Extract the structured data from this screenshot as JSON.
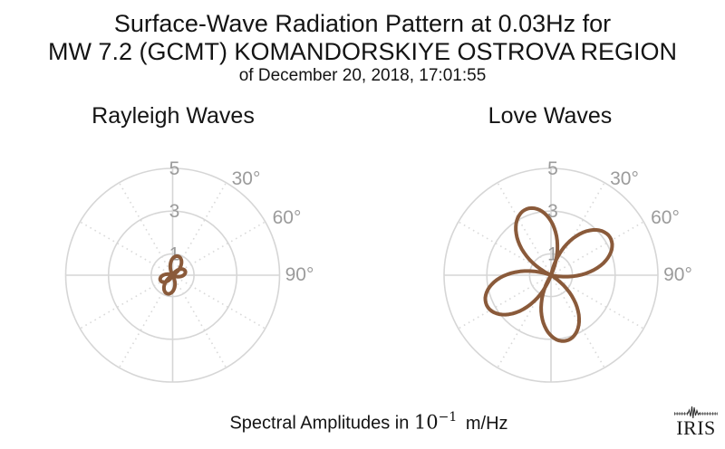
{
  "header": {
    "title_line1": "Surface-Wave Radiation Pattern at 0.03Hz for",
    "title_line2": "MW 7.2 (GCMT) KOMANDORSKIYE OSTROVA REGION",
    "date_line": "of December 20, 2018, 17:01:55"
  },
  "footer": {
    "label_prefix": "Spectral Amplitudes in",
    "scale_base": "10",
    "scale_exponent": "−1",
    "unit": "m/Hz"
  },
  "logo": {
    "text": "IRIS",
    "icon": "seismogram-trace-icon"
  },
  "colors": {
    "curve": "#8a5a3a",
    "grid_solid": "#d6d6d6",
    "grid_dotted": "#d9d9d9",
    "tick_label": "#9b9b9b",
    "text": "#141414"
  },
  "chart_data": [
    {
      "type": "polar_radiation_pattern",
      "title": "Rayleigh Waves",
      "r_axis": {
        "ticks": [
          1,
          3,
          5
        ],
        "max": 5,
        "unit": "10^-1 m/Hz"
      },
      "angle_ticks": [
        {
          "deg": 30,
          "label": "30°"
        },
        {
          "deg": 60,
          "label": "60°"
        },
        {
          "deg": 90,
          "label": "90°"
        }
      ],
      "spoke_step_deg": 30,
      "lobes": [
        {
          "azimuth_deg": 16,
          "amplitude": 0.92
        },
        {
          "azimuth_deg": 73,
          "amplitude": 0.62
        },
        {
          "azimuth_deg": 196,
          "amplitude": 0.9
        },
        {
          "azimuth_deg": 248,
          "amplitude": 0.62
        }
      ]
    },
    {
      "type": "polar_radiation_pattern",
      "title": "Love Waves",
      "r_axis": {
        "ticks": [
          1,
          3,
          5
        ],
        "max": 5,
        "unit": "10^-1 m/Hz"
      },
      "angle_ticks": [
        {
          "deg": 30,
          "label": "30°"
        },
        {
          "deg": 60,
          "label": "60°"
        },
        {
          "deg": 90,
          "label": "90°"
        }
      ],
      "spoke_step_deg": 30,
      "lobes": [
        {
          "azimuth_deg": 340,
          "amplitude": 3.3
        },
        {
          "azimuth_deg": 57,
          "amplitude": 3.28
        },
        {
          "azimuth_deg": 167,
          "amplitude": 3.15
        },
        {
          "azimuth_deg": 245,
          "amplitude": 3.32
        }
      ]
    }
  ]
}
